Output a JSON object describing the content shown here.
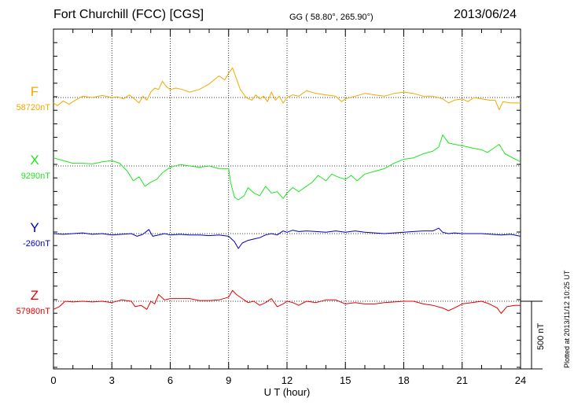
{
  "header": {
    "station": "Fort Churchill (FCC)  [CGS]",
    "coords": "GG ( 58.80°, 265.90°)",
    "date": "2013/06/24",
    "plotted": "Plotted at 2013/11/12 10:25 UT",
    "scale_label": "500 nT"
  },
  "chart_data": {
    "type": "line",
    "xlabel": "U T (hour)",
    "xlim": [
      0,
      24
    ],
    "xticks": [
      "0",
      "3",
      "6",
      "9",
      "12",
      "15",
      "18",
      "21",
      "24"
    ],
    "grid": true,
    "scale_bar_nT": 500,
    "series": [
      {
        "name": "F",
        "baseline": "58720nT",
        "color": "#f5a800",
        "points": [
          [
            0,
            -40
          ],
          [
            0.2,
            -60
          ],
          [
            0.5,
            -25
          ],
          [
            0.8,
            -50
          ],
          [
            1,
            -30
          ],
          [
            1.5,
            10
          ],
          [
            2,
            0
          ],
          [
            2.5,
            15
          ],
          [
            3,
            0
          ],
          [
            3.3,
            5
          ],
          [
            3.6,
            -10
          ],
          [
            3.9,
            20
          ],
          [
            4.2,
            -15
          ],
          [
            4.4,
            -40
          ],
          [
            4.6,
            10
          ],
          [
            4.8,
            -20
          ],
          [
            5,
            40
          ],
          [
            5.2,
            70
          ],
          [
            5.4,
            60
          ],
          [
            5.6,
            120
          ],
          [
            5.8,
            80
          ],
          [
            6,
            60
          ],
          [
            6.3,
            70
          ],
          [
            6.6,
            60
          ],
          [
            7,
            40
          ],
          [
            7.5,
            60
          ],
          [
            8,
            100
          ],
          [
            8.5,
            160
          ],
          [
            8.8,
            130
          ],
          [
            9,
            180
          ],
          [
            9.2,
            220
          ],
          [
            9.4,
            140
          ],
          [
            9.6,
            60
          ],
          [
            9.9,
            0
          ],
          [
            10.2,
            -20
          ],
          [
            10.4,
            20
          ],
          [
            10.6,
            -10
          ],
          [
            10.8,
            10
          ],
          [
            11,
            -30
          ],
          [
            11.2,
            40
          ],
          [
            11.4,
            -20
          ],
          [
            11.6,
            10
          ],
          [
            11.8,
            -40
          ],
          [
            12,
            0
          ],
          [
            12.3,
            20
          ],
          [
            12.6,
            10
          ],
          [
            13,
            50
          ],
          [
            13.5,
            30
          ],
          [
            14,
            20
          ],
          [
            14.5,
            10
          ],
          [
            14.8,
            -30
          ],
          [
            15,
            -10
          ],
          [
            15.5,
            10
          ],
          [
            16,
            30
          ],
          [
            16.5,
            20
          ],
          [
            17,
            10
          ],
          [
            17.5,
            30
          ],
          [
            18,
            40
          ],
          [
            18.5,
            30
          ],
          [
            19,
            10
          ],
          [
            19.5,
            10
          ],
          [
            20,
            -10
          ],
          [
            20.3,
            -40
          ],
          [
            20.6,
            -20
          ],
          [
            21,
            -10
          ],
          [
            21.3,
            -30
          ],
          [
            21.6,
            0
          ],
          [
            22,
            -10
          ],
          [
            22.4,
            -20
          ],
          [
            22.7,
            -20
          ],
          [
            22.9,
            -90
          ],
          [
            23.1,
            -30
          ],
          [
            23.5,
            -40
          ],
          [
            24,
            -40
          ]
        ]
      },
      {
        "name": "X",
        "baseline": "9290nT",
        "color": "#1ee61e",
        "points": [
          [
            0,
            60
          ],
          [
            0.5,
            40
          ],
          [
            1,
            20
          ],
          [
            1.5,
            20
          ],
          [
            2,
            15
          ],
          [
            2.5,
            30
          ],
          [
            3,
            40
          ],
          [
            3.4,
            20
          ],
          [
            3.8,
            -40
          ],
          [
            4.1,
            -110
          ],
          [
            4.4,
            -80
          ],
          [
            4.7,
            -150
          ],
          [
            5,
            -120
          ],
          [
            5.3,
            -100
          ],
          [
            5.6,
            -50
          ],
          [
            6,
            -10
          ],
          [
            6.5,
            10
          ],
          [
            7,
            0
          ],
          [
            7.5,
            -10
          ],
          [
            8,
            0
          ],
          [
            8.5,
            -20
          ],
          [
            9,
            -20
          ],
          [
            9.1,
            -120
          ],
          [
            9.3,
            -230
          ],
          [
            9.5,
            -250
          ],
          [
            9.8,
            -220
          ],
          [
            10,
            -160
          ],
          [
            10.3,
            -200
          ],
          [
            10.6,
            -220
          ],
          [
            10.9,
            -150
          ],
          [
            11.2,
            -200
          ],
          [
            11.5,
            -190
          ],
          [
            11.8,
            -240
          ],
          [
            12,
            -200
          ],
          [
            12.3,
            -160
          ],
          [
            12.6,
            -190
          ],
          [
            13,
            -150
          ],
          [
            13.3,
            -120
          ],
          [
            13.6,
            -70
          ],
          [
            14,
            -110
          ],
          [
            14.3,
            -60
          ],
          [
            14.6,
            -80
          ],
          [
            15,
            -100
          ],
          [
            15.3,
            -70
          ],
          [
            15.6,
            -110
          ],
          [
            16,
            -60
          ],
          [
            16.5,
            -40
          ],
          [
            17,
            -20
          ],
          [
            17.5,
            20
          ],
          [
            18,
            50
          ],
          [
            18.5,
            60
          ],
          [
            19,
            90
          ],
          [
            19.5,
            110
          ],
          [
            19.8,
            140
          ],
          [
            20,
            230
          ],
          [
            20.3,
            170
          ],
          [
            20.6,
            160
          ],
          [
            21,
            150
          ],
          [
            21.3,
            140
          ],
          [
            21.6,
            130
          ],
          [
            22,
            120
          ],
          [
            22.3,
            100
          ],
          [
            22.6,
            130
          ],
          [
            22.9,
            160
          ],
          [
            23.2,
            90
          ],
          [
            23.6,
            60
          ],
          [
            24,
            30
          ]
        ]
      },
      {
        "name": "Y",
        "baseline": "-260nT",
        "color": "#0000c8",
        "points": [
          [
            0,
            0
          ],
          [
            0.5,
            -5
          ],
          [
            1,
            0
          ],
          [
            1.5,
            5
          ],
          [
            2,
            -5
          ],
          [
            2.5,
            0
          ],
          [
            3,
            -10
          ],
          [
            3.5,
            -5
          ],
          [
            4,
            0
          ],
          [
            4.3,
            -20
          ],
          [
            4.6,
            -5
          ],
          [
            4.9,
            30
          ],
          [
            5.1,
            -20
          ],
          [
            5.4,
            -10
          ],
          [
            5.7,
            0
          ],
          [
            6,
            -10
          ],
          [
            6.5,
            -5
          ],
          [
            7,
            -10
          ],
          [
            7.5,
            -10
          ],
          [
            8,
            -15
          ],
          [
            8.5,
            -10
          ],
          [
            9,
            -20
          ],
          [
            9.3,
            -60
          ],
          [
            9.5,
            -110
          ],
          [
            9.7,
            -70
          ],
          [
            10,
            -50
          ],
          [
            10.3,
            -40
          ],
          [
            10.6,
            -30
          ],
          [
            10.9,
            -10
          ],
          [
            11.2,
            0
          ],
          [
            11.5,
            -10
          ],
          [
            11.8,
            20
          ],
          [
            12,
            10
          ],
          [
            12.3,
            25
          ],
          [
            12.6,
            15
          ],
          [
            13,
            20
          ],
          [
            13.5,
            15
          ],
          [
            14,
            10
          ],
          [
            14.5,
            20
          ],
          [
            15,
            10
          ],
          [
            15.5,
            20
          ],
          [
            16,
            10
          ],
          [
            16.5,
            5
          ],
          [
            17,
            0
          ],
          [
            17.5,
            5
          ],
          [
            18,
            10
          ],
          [
            18.5,
            15
          ],
          [
            19,
            20
          ],
          [
            19.5,
            20
          ],
          [
            19.8,
            40
          ],
          [
            20,
            10
          ],
          [
            20.3,
            0
          ],
          [
            20.6,
            5
          ],
          [
            21,
            0
          ],
          [
            21.5,
            0
          ],
          [
            22,
            0
          ],
          [
            22.5,
            -5
          ],
          [
            23,
            -10
          ],
          [
            23.5,
            -5
          ],
          [
            24,
            -20
          ]
        ]
      },
      {
        "name": "Z",
        "baseline": "57980nT",
        "color": "#e60000",
        "points": [
          [
            0,
            -60
          ],
          [
            0.3,
            -40
          ],
          [
            0.6,
            0
          ],
          [
            1,
            -5
          ],
          [
            1.5,
            0
          ],
          [
            2,
            -5
          ],
          [
            2.5,
            0
          ],
          [
            3,
            -10
          ],
          [
            3.5,
            10
          ],
          [
            4,
            0
          ],
          [
            4.2,
            -40
          ],
          [
            4.5,
            -30
          ],
          [
            4.8,
            -60
          ],
          [
            5,
            0
          ],
          [
            5.2,
            -20
          ],
          [
            5.4,
            50
          ],
          [
            5.7,
            10
          ],
          [
            6,
            20
          ],
          [
            6.5,
            20
          ],
          [
            7,
            20
          ],
          [
            7.5,
            5
          ],
          [
            8,
            5
          ],
          [
            8.5,
            10
          ],
          [
            9,
            30
          ],
          [
            9.2,
            80
          ],
          [
            9.4,
            50
          ],
          [
            9.7,
            20
          ],
          [
            10,
            -10
          ],
          [
            10.3,
            0
          ],
          [
            10.6,
            -30
          ],
          [
            10.9,
            -10
          ],
          [
            11.2,
            20
          ],
          [
            11.5,
            -40
          ],
          [
            11.8,
            -20
          ],
          [
            12,
            0
          ],
          [
            12.3,
            -10
          ],
          [
            12.6,
            -30
          ],
          [
            13,
            0
          ],
          [
            13.5,
            -10
          ],
          [
            14,
            10
          ],
          [
            14.5,
            10
          ],
          [
            15,
            -20
          ],
          [
            15.5,
            -10
          ],
          [
            16,
            -20
          ],
          [
            16.5,
            -20
          ],
          [
            17,
            -10
          ],
          [
            17.5,
            -5
          ],
          [
            18,
            0
          ],
          [
            18.5,
            0
          ],
          [
            19,
            -20
          ],
          [
            19.5,
            -30
          ],
          [
            20,
            -50
          ],
          [
            20.3,
            -70
          ],
          [
            20.6,
            -50
          ],
          [
            21,
            -20
          ],
          [
            21.5,
            -10
          ],
          [
            22,
            0
          ],
          [
            22.4,
            -20
          ],
          [
            22.8,
            -50
          ],
          [
            23,
            -90
          ],
          [
            23.3,
            -40
          ],
          [
            23.7,
            -30
          ],
          [
            24,
            -30
          ]
        ]
      }
    ]
  }
}
